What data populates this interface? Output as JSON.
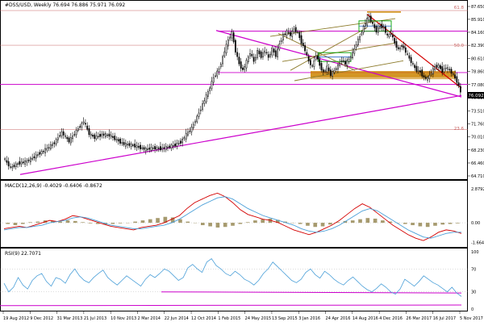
{
  "header": {
    "main": "#DSS/USD, Weekly  76.694 76.886 75.971 76.092",
    "macd": "MACD(12,26,9) -0.4029 -0.6406 -0.8672",
    "rsi": "RSI(9) 22.7071"
  },
  "colors": {
    "candle": "#000000",
    "magenta": "#cc00cc",
    "red": "#d40000",
    "orange": "#cc8400",
    "olive": "#8c7a2a",
    "green": "#00a000",
    "blue": "#1e64c8",
    "steelblue": "#4a9fd8",
    "fib": "#c86464",
    "histogram": "#a69a6e"
  },
  "fib_labels": [
    "61.8",
    "50.0",
    "23.6"
  ],
  "chart_data": [
    {
      "type": "candlestick",
      "title": "#DSS/USD, Weekly",
      "x_labels": [
        "19 Aug 2012",
        "9 Dec 2012",
        "31 Mar 2013",
        "21 Jul 2013",
        "10 Nov 2013",
        "2 Mar 2014",
        "22 Jun 2014",
        "12 Oct 2014",
        "1 Feb 2015",
        "24 May 2015",
        "13 Sep 2015",
        "3 Jan 2016",
        "24 Apr 2016",
        "14 Aug 2016",
        "4 Dec 2016",
        "26 Mar 2017",
        "16 Jul 2017",
        "5 Nov 2017"
      ],
      "y_ticks": [
        "87.650",
        "85.910",
        "84.160",
        "82.390",
        "80.610",
        "78.860",
        "77.080",
        "75.310",
        "73.510",
        "71.760",
        "70.010",
        "68.230",
        "66.460",
        "64.710"
      ],
      "ylim": [
        64.71,
        87.65
      ],
      "last_price": "76.092",
      "ohlc_path": [
        [
          0,
          67.2
        ],
        [
          4,
          65.8
        ],
        [
          8,
          66.4
        ],
        [
          12,
          66.6
        ],
        [
          16,
          67.1
        ],
        [
          20,
          67.8
        ],
        [
          24,
          68.4
        ],
        [
          28,
          69.2
        ],
        [
          32,
          70.6
        ],
        [
          36,
          69.4
        ],
        [
          40,
          70.8
        ],
        [
          44,
          72.1
        ],
        [
          47,
          70.4
        ],
        [
          50,
          69.9
        ],
        [
          54,
          70.3
        ],
        [
          58,
          70.2
        ],
        [
          62,
          69.6
        ],
        [
          66,
          69.0
        ],
        [
          70,
          68.9
        ],
        [
          74,
          68.6
        ],
        [
          78,
          68.3
        ],
        [
          82,
          68.5
        ],
        [
          86,
          68.4
        ],
        [
          90,
          68.6
        ],
        [
          94,
          68.9
        ],
        [
          97,
          69.3
        ],
        [
          100,
          70.3
        ],
        [
          103,
          71.2
        ],
        [
          106,
          72.7
        ],
        [
          109,
          74.4
        ],
        [
          112,
          76.1
        ],
        [
          115,
          78.0
        ],
        [
          118,
          79.2
        ],
        [
          121,
          81.6
        ],
        [
          123,
          83.1
        ],
        [
          125,
          84.1
        ],
        [
          127,
          81.6
        ],
        [
          129,
          79.9
        ],
        [
          131,
          79.0
        ],
        [
          133,
          80.2
        ],
        [
          135,
          81.4
        ],
        [
          137,
          80.2
        ],
        [
          139,
          81.6
        ],
        [
          141,
          80.9
        ],
        [
          143,
          81.7
        ],
        [
          145,
          80.7
        ],
        [
          147,
          81.9
        ],
        [
          149,
          81.0
        ],
        [
          151,
          82.6
        ],
        [
          153,
          83.8
        ],
        [
          155,
          84.2
        ],
        [
          157,
          83.8
        ],
        [
          159,
          84.6
        ],
        [
          161,
          84.1
        ],
        [
          163,
          82.8
        ],
        [
          165,
          81.7
        ],
        [
          167,
          80.2
        ],
        [
          169,
          79.5
        ],
        [
          171,
          81.1
        ],
        [
          173,
          79.7
        ],
        [
          175,
          78.7
        ],
        [
          177,
          79.4
        ],
        [
          179,
          78.4
        ],
        [
          181,
          79.0
        ],
        [
          183,
          79.6
        ],
        [
          185,
          80.4
        ],
        [
          187,
          79.9
        ],
        [
          189,
          80.5
        ],
        [
          191,
          81.3
        ],
        [
          193,
          82.6
        ],
        [
          195,
          83.6
        ],
        [
          197,
          84.9
        ],
        [
          199,
          85.9
        ],
        [
          200,
          86.2
        ],
        [
          202,
          85.2
        ],
        [
          204,
          84.3
        ],
        [
          206,
          85.0
        ],
        [
          208,
          84.8
        ],
        [
          210,
          83.6
        ],
        [
          212,
          84.0
        ],
        [
          214,
          82.7
        ],
        [
          216,
          81.8
        ],
        [
          218,
          82.4
        ],
        [
          220,
          81.5
        ],
        [
          222,
          80.6
        ],
        [
          224,
          79.7
        ],
        [
          226,
          79.0
        ],
        [
          228,
          78.8
        ],
        [
          230,
          78.0
        ],
        [
          232,
          77.9
        ],
        [
          234,
          78.7
        ],
        [
          236,
          79.5
        ],
        [
          238,
          79.6
        ],
        [
          240,
          78.9
        ],
        [
          242,
          79.4
        ],
        [
          244,
          79.0
        ],
        [
          246,
          78.4
        ],
        [
          248,
          77.5
        ],
        [
          250,
          76.09
        ]
      ]
    },
    {
      "type": "line",
      "title": "MACD(12,26,9)",
      "y_ticks": [
        "2.8792",
        "0.00",
        "-1.6642"
      ],
      "ylim": [
        -1.9,
        3.0
      ],
      "series": [
        {
          "values": [
            -0.5,
            -0.4,
            -0.3,
            -0.4,
            -0.2,
            0.0,
            0.2,
            0.1,
            0.3,
            0.6,
            0.5,
            0.3,
            0.1,
            -0.1,
            -0.3,
            -0.4,
            -0.5,
            -0.6,
            -0.4,
            -0.3,
            -0.2,
            0.0,
            0.3,
            0.6,
            1.2,
            1.7,
            2.0,
            2.3,
            2.5,
            2.2,
            1.7,
            1.1,
            0.7,
            0.5,
            0.3,
            0.2,
            0.0,
            -0.3,
            -0.6,
            -0.8,
            -1.0,
            -0.8,
            -0.5,
            -0.2,
            0.2,
            0.7,
            1.2,
            1.6,
            1.3,
            0.8,
            0.3,
            -0.2,
            -0.6,
            -1.0,
            -1.3,
            -1.5,
            -1.2,
            -0.8,
            -0.6,
            -0.7,
            -0.9
          ]
        },
        {
          "values": [
            -0.6,
            -0.5,
            -0.4,
            -0.4,
            -0.3,
            -0.2,
            0.0,
            0.1,
            0.2,
            0.4,
            0.5,
            0.4,
            0.2,
            0.0,
            -0.2,
            -0.3,
            -0.4,
            -0.5,
            -0.5,
            -0.4,
            -0.3,
            -0.2,
            0.0,
            0.3,
            0.7,
            1.1,
            1.5,
            1.8,
            2.1,
            2.2,
            2.0,
            1.6,
            1.2,
            0.9,
            0.6,
            0.4,
            0.2,
            0.0,
            -0.2,
            -0.5,
            -0.7,
            -0.8,
            -0.7,
            -0.5,
            -0.2,
            0.2,
            0.6,
            1.0,
            1.2,
            1.0,
            0.6,
            0.2,
            -0.2,
            -0.6,
            -0.9,
            -1.2,
            -1.3,
            -1.1,
            -0.9,
            -0.8,
            -0.8
          ]
        }
      ],
      "histogram": [
        -0.1,
        -0.2,
        -0.1,
        0.05,
        0.1,
        0.2,
        0.15,
        0.1,
        0.2,
        0.15,
        0.05,
        -0.05,
        -0.1,
        -0.15,
        -0.1,
        -0.05,
        0.0,
        0.1,
        0.2,
        0.3,
        0.4,
        0.5,
        0.45,
        0.3,
        0.1,
        0.0,
        -0.2,
        -0.3,
        -0.4,
        -0.35,
        -0.25,
        -0.1,
        0.05,
        0.2,
        0.3,
        0.35,
        0.25,
        0.1,
        0.0,
        -0.1,
        -0.25,
        -0.35,
        -0.3,
        -0.15,
        0.05,
        0.15,
        0.2,
        0.3,
        0.4,
        0.35,
        0.2,
        0.1,
        0.0,
        -0.1,
        -0.2,
        -0.3,
        -0.35,
        -0.25,
        -0.15,
        -0.1,
        -0.05
      ]
    },
    {
      "type": "line",
      "title": "RSI(9)",
      "y_ticks": [
        "100",
        "70",
        "30",
        "0"
      ],
      "ylim": [
        0,
        100
      ],
      "series": [
        {
          "values": [
            45,
            30,
            38,
            55,
            42,
            35,
            50,
            58,
            62,
            48,
            40,
            55,
            52,
            45,
            60,
            70,
            58,
            50,
            46,
            55,
            62,
            68,
            55,
            48,
            42,
            50,
            58,
            52,
            46,
            40,
            52,
            60,
            55,
            62,
            70,
            66,
            58,
            50,
            55,
            72,
            78,
            70,
            64,
            82,
            88,
            76,
            70,
            62,
            58,
            66,
            60,
            52,
            48,
            42,
            50,
            62,
            70,
            82,
            74,
            66,
            58,
            50,
            46,
            52,
            64,
            70,
            60,
            54,
            66,
            60,
            52,
            46,
            42,
            50,
            56,
            48,
            40,
            34,
            30,
            36,
            44,
            38,
            30,
            26,
            35,
            52,
            46,
            40,
            48,
            58,
            52,
            46,
            42,
            36,
            30,
            38,
            28,
            22
          ]
        }
      ],
      "levels": [
        70,
        30
      ]
    }
  ]
}
